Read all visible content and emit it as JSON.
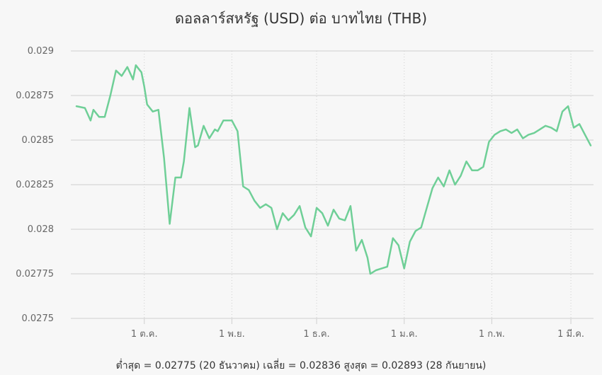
{
  "chart_data": {
    "type": "line",
    "title": "ดอลลาร์สหรัฐ (USD) ต่อ บาทไทย (THB)",
    "xlabel": "",
    "ylabel": "",
    "ylim": [
      0.0275,
      0.029
    ],
    "yticks": [
      0.029,
      0.02875,
      0.0285,
      0.02825,
      0.028,
      0.02775,
      0.0275
    ],
    "ytick_labels": [
      "0.029",
      "0.02875",
      "0.0285",
      "0.02825",
      "0.028",
      "0.02775",
      "0.0275"
    ],
    "xlim": [
      "2022-09-05",
      "2023-03-09"
    ],
    "xticks": [
      {
        "date": "2022-10-01",
        "label": "1 ต.ค."
      },
      {
        "date": "2022-11-01",
        "label": "1 พ.ย."
      },
      {
        "date": "2022-12-01",
        "label": "1 ธ.ค."
      },
      {
        "date": "2023-01-01",
        "label": "1 ม.ค."
      },
      {
        "date": "2023-02-01",
        "label": "1 ก.พ."
      },
      {
        "date": "2023-03-01",
        "label": "1 มี.ค."
      }
    ],
    "grid": true,
    "line_color": "#6fcf97",
    "series": [
      {
        "x": [
          "2022-09-07",
          "2022-09-10",
          "2022-09-12",
          "2022-09-13",
          "2022-09-15",
          "2022-09-17",
          "2022-09-19",
          "2022-09-21",
          "2022-09-23",
          "2022-09-25",
          "2022-09-27",
          "2022-09-28",
          "2022-09-29",
          "2022-09-30",
          "2022-10-01",
          "2022-10-02",
          "2022-10-04",
          "2022-10-06",
          "2022-10-08",
          "2022-10-10",
          "2022-10-12",
          "2022-10-14",
          "2022-10-15",
          "2022-10-17",
          "2022-10-19",
          "2022-10-20",
          "2022-10-22",
          "2022-10-24",
          "2022-10-26",
          "2022-10-27",
          "2022-10-29",
          "2022-11-01",
          "2022-11-03",
          "2022-11-05",
          "2022-11-07",
          "2022-11-09",
          "2022-11-11",
          "2022-11-13",
          "2022-11-15",
          "2022-11-17",
          "2022-11-19",
          "2022-11-21",
          "2022-11-23",
          "2022-11-25",
          "2022-11-27",
          "2022-11-29",
          "2022-12-01",
          "2022-12-03",
          "2022-12-05",
          "2022-12-07",
          "2022-12-09",
          "2022-12-11",
          "2022-12-13",
          "2022-12-15",
          "2022-12-17",
          "2022-12-19",
          "2022-12-20",
          "2022-12-22",
          "2022-12-24",
          "2022-12-26",
          "2022-12-28",
          "2022-12-30",
          "2023-01-01",
          "2023-01-03",
          "2023-01-05",
          "2023-01-07",
          "2023-01-09",
          "2023-01-11",
          "2023-01-13",
          "2023-01-15",
          "2023-01-17",
          "2023-01-19",
          "2023-01-21",
          "2023-01-23",
          "2023-01-25",
          "2023-01-27",
          "2023-01-29",
          "2023-01-31",
          "2023-02-02",
          "2023-02-04",
          "2023-02-06",
          "2023-02-08",
          "2023-02-10",
          "2023-02-12",
          "2023-02-14",
          "2023-02-16",
          "2023-02-18",
          "2023-02-20",
          "2023-02-22",
          "2023-02-24",
          "2023-02-26",
          "2023-02-28",
          "2023-03-02",
          "2023-03-04",
          "2023-03-06",
          "2023-03-08"
        ],
        "y": [
          0.02869,
          0.02868,
          0.02861,
          0.02867,
          0.02863,
          0.02863,
          0.02875,
          0.02889,
          0.02886,
          0.02891,
          0.02884,
          0.02892,
          0.0289,
          0.02888,
          0.0288,
          0.0287,
          0.02866,
          0.02867,
          0.0284,
          0.02803,
          0.02829,
          0.02829,
          0.02838,
          0.02868,
          0.02846,
          0.02847,
          0.02858,
          0.02851,
          0.02856,
          0.02855,
          0.02861,
          0.02861,
          0.02855,
          0.02824,
          0.02822,
          0.02816,
          0.02812,
          0.02814,
          0.02812,
          0.028,
          0.02809,
          0.02805,
          0.02808,
          0.02813,
          0.02801,
          0.02796,
          0.02812,
          0.02809,
          0.02802,
          0.02811,
          0.02806,
          0.02805,
          0.02813,
          0.02788,
          0.02794,
          0.02784,
          0.02775,
          0.02777,
          0.02778,
          0.02779,
          0.02795,
          0.02791,
          0.02778,
          0.02793,
          0.02799,
          0.02801,
          0.02812,
          0.02823,
          0.02829,
          0.02824,
          0.02833,
          0.02825,
          0.0283,
          0.02838,
          0.02833,
          0.02833,
          0.02835,
          0.02849,
          0.02853,
          0.02855,
          0.02856,
          0.02854,
          0.02856,
          0.02851,
          0.02853,
          0.02854,
          0.02856,
          0.02858,
          0.02857,
          0.02855,
          0.02866,
          0.02869,
          0.02857,
          0.02859,
          0.02853,
          0.02847
        ]
      }
    ],
    "footer": "ต่ำสุด = 0.02775 (20 ธันวาคม) เฉลี่ย = 0.02836 สูงสุด = 0.02893 (28 กันยายน)"
  }
}
